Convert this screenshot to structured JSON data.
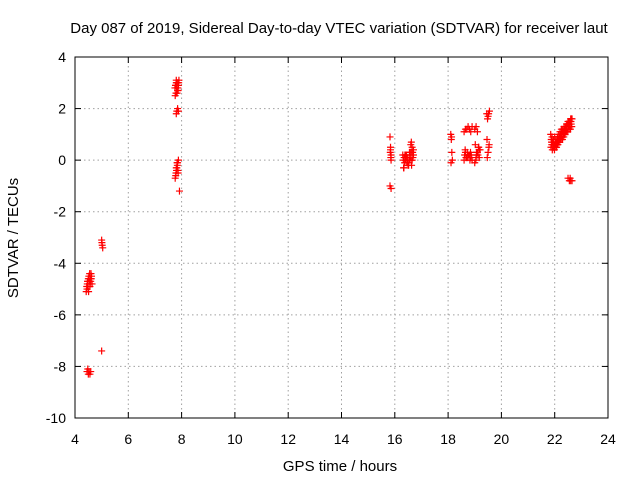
{
  "chart_data": {
    "type": "scatter",
    "title": "Day 087 of 2019, Sidereal Day-to-day VTEC variation (SDTVAR) for receiver laut",
    "xlabel": "GPS time / hours",
    "ylabel": "SDTVAR / TECUs",
    "xlim": [
      4,
      24
    ],
    "ylim": [
      -10,
      4
    ],
    "xticks": [
      4,
      6,
      8,
      10,
      12,
      14,
      16,
      18,
      20,
      22,
      24
    ],
    "yticks": [
      4,
      2,
      0,
      -2,
      -4,
      -6,
      -8,
      -10
    ],
    "grid": true,
    "marker": "+",
    "color": "#ff0000",
    "series": [
      {
        "name": "laut",
        "x": [
          4.42,
          4.44,
          4.46,
          4.48,
          4.5,
          4.52,
          4.54,
          4.56,
          4.58,
          4.6,
          4.62,
          4.64,
          4.45,
          4.47,
          4.49,
          4.51,
          4.53,
          4.55,
          4.57,
          4.59,
          4.61,
          4.45,
          4.48,
          4.5,
          4.53,
          4.56,
          4.59,
          5.0,
          5.02,
          5.04,
          5.01,
          5.0,
          7.75,
          7.78,
          7.8,
          7.82,
          7.85,
          7.88,
          7.9,
          7.76,
          7.79,
          7.81,
          7.84,
          7.87,
          7.77,
          7.8,
          7.83,
          7.86,
          7.89,
          7.8,
          7.82,
          7.85,
          7.88,
          7.76,
          7.79,
          7.82,
          7.85,
          7.88,
          7.78,
          7.81,
          7.84,
          7.87,
          7.8,
          7.83,
          7.86,
          7.92,
          15.82,
          15.84,
          15.86,
          15.85,
          15.83,
          15.86,
          15.84,
          15.82,
          15.86,
          16.3,
          16.35,
          16.4,
          16.45,
          16.5,
          16.55,
          16.6,
          16.65,
          16.7,
          16.33,
          16.38,
          16.43,
          16.48,
          16.53,
          16.58,
          16.63,
          16.68,
          16.32,
          16.37,
          16.42,
          16.47,
          16.52,
          16.57,
          16.62,
          16.34,
          16.44,
          16.54,
          16.64,
          16.6,
          16.65,
          16.7,
          16.62,
          16.67,
          18.1,
          18.12,
          18.14,
          18.16,
          18.11,
          18.13,
          18.6,
          18.65,
          18.7,
          18.75,
          18.8,
          18.85,
          18.9,
          18.62,
          18.67,
          18.72,
          18.77,
          18.82,
          18.87,
          18.64,
          18.74,
          18.84,
          18.6,
          18.7,
          18.8,
          18.9,
          18.65,
          18.75,
          18.85,
          19.0,
          19.05,
          19.1,
          19.15,
          19.2,
          19.02,
          19.07,
          19.12,
          19.17,
          19.04,
          19.14,
          19.06,
          19.16,
          19.0,
          19.05,
          19.1,
          19.45,
          19.5,
          19.55,
          19.48,
          19.52,
          19.46,
          19.54,
          19.5,
          19.47,
          19.53,
          21.85,
          21.9,
          21.95,
          22.0,
          22.05,
          22.1,
          22.15,
          22.2,
          22.25,
          22.3,
          22.35,
          22.4,
          22.45,
          22.5,
          22.55,
          22.6,
          22.65,
          21.88,
          21.93,
          21.98,
          22.03,
          22.08,
          22.13,
          22.18,
          22.23,
          22.28,
          22.33,
          22.38,
          22.43,
          22.48,
          22.53,
          22.58,
          22.63,
          21.86,
          21.91,
          21.96,
          22.01,
          22.06,
          22.11,
          22.16,
          22.21,
          22.26,
          22.31,
          22.36,
          22.41,
          22.46,
          22.51,
          22.56,
          22.61,
          21.87,
          21.92,
          21.97,
          22.02,
          22.07,
          22.12,
          22.17,
          22.22,
          22.27,
          22.32,
          22.37,
          22.42,
          22.47,
          22.52,
          22.57,
          22.62,
          21.89,
          21.94,
          21.99,
          22.04,
          22.09,
          22.14,
          22.19,
          22.24,
          22.29,
          22.34,
          22.39,
          22.44,
          22.49,
          22.54,
          22.59,
          22.64,
          22.5,
          22.55,
          22.6,
          22.65,
          22.58
        ],
        "y": [
          -5.1,
          -4.9,
          -4.8,
          -4.7,
          -4.6,
          -4.5,
          -4.7,
          -4.9,
          -4.6,
          -4.4,
          -4.5,
          -4.8,
          -5.0,
          -4.7,
          -4.9,
          -5.1,
          -4.6,
          -4.4,
          -4.8,
          -4.7,
          -4.6,
          -8.2,
          -8.1,
          -8.3,
          -8.2,
          -8.3,
          -8.2,
          -3.1,
          -3.3,
          -3.4,
          -3.2,
          -7.4,
          2.8,
          2.9,
          3.1,
          3.0,
          2.7,
          2.9,
          3.1,
          2.5,
          2.6,
          2.8,
          3.0,
          2.7,
          2.9,
          3.0,
          2.6,
          2.8,
          3.0,
          1.8,
          1.9,
          2.0,
          1.9,
          -0.7,
          -0.5,
          -0.3,
          -0.1,
          0.0,
          -0.6,
          -0.4,
          -0.2,
          -0.5,
          -0.3,
          -0.1,
          -0.4,
          -1.2,
          0.9,
          0.5,
          0.2,
          0.1,
          0.3,
          0.0,
          0.4,
          -1.0,
          -1.1,
          0.2,
          0.1,
          0.0,
          -0.1,
          -0.2,
          0.3,
          0.1,
          0.0,
          0.2,
          -0.3,
          0.2,
          0.1,
          -0.1,
          0.0,
          0.3,
          -0.2,
          0.1,
          0.0,
          -0.1,
          0.2,
          0.1,
          -0.2,
          0.0,
          0.3,
          -0.3,
          0.2,
          0.1,
          0.0,
          0.6,
          0.5,
          0.4,
          0.7,
          0.3,
          1.0,
          0.8,
          0.3,
          0.0,
          -0.1,
          0.9,
          1.1,
          1.2,
          1.2,
          1.3,
          1.2,
          1.1,
          1.3,
          0.2,
          0.1,
          0.3,
          0.2,
          0.0,
          0.2,
          0.4,
          0.1,
          0.3,
          0.0,
          0.1,
          0.2,
          0.0,
          0.3,
          0.2,
          0.1,
          1.2,
          1.3,
          1.1,
          0.5,
          0.4,
          0.6,
          0.3,
          0.2,
          0.1,
          0.0,
          0.5,
          0.2,
          0.4,
          -0.1,
          0.1,
          0.3,
          1.8,
          1.7,
          1.9,
          1.6,
          1.8,
          0.8,
          0.6,
          0.3,
          0.1,
          0.5,
          1.0,
          0.9,
          0.8,
          0.9,
          0.8,
          0.9,
          1.0,
          1.1,
          1.2,
          1.2,
          1.3,
          1.3,
          1.4,
          1.5,
          1.5,
          1.6,
          1.6,
          0.7,
          0.6,
          0.5,
          0.6,
          0.7,
          0.8,
          0.9,
          1.0,
          1.1,
          1.1,
          1.2,
          1.3,
          1.4,
          1.5,
          1.5,
          1.6,
          0.5,
          0.4,
          0.5,
          0.6,
          0.7,
          0.8,
          0.8,
          0.9,
          1.0,
          1.1,
          1.2,
          1.2,
          1.3,
          1.4,
          1.4,
          1.5,
          0.8,
          0.7,
          0.6,
          0.7,
          0.5,
          0.6,
          0.9,
          0.8,
          0.9,
          1.0,
          1.0,
          1.1,
          1.2,
          1.3,
          1.3,
          1.4,
          0.6,
          0.5,
          0.4,
          0.5,
          0.6,
          0.7,
          0.7,
          0.8,
          0.8,
          0.9,
          1.0,
          1.1,
          1.1,
          1.2,
          1.2,
          1.3,
          -0.7,
          -0.8,
          -0.8,
          -0.8,
          -0.7
        ]
      }
    ]
  }
}
